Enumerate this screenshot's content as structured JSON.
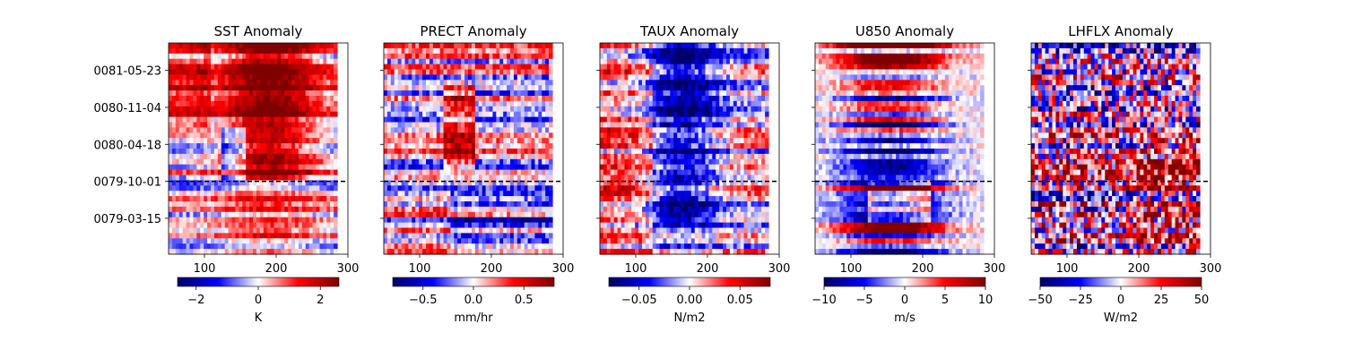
{
  "figure": {
    "ytick_labels": [
      "0081-05-23",
      "0080-11-04",
      "0080-04-18",
      "0079-10-01",
      "0079-03-15"
    ],
    "ytick_fracs": [
      0.13,
      0.305,
      0.48,
      0.655,
      0.83
    ],
    "event_line_frac": 0.655,
    "colormap": [
      "#000066",
      "#0000ff",
      "#ffffff",
      "#ff0000",
      "#800000"
    ]
  },
  "chart_data": [
    {
      "type": "heatmap",
      "title": "SST Anomaly",
      "xlim": [
        50,
        300
      ],
      "xticks": [
        100,
        200,
        300
      ],
      "data_x_extent": [
        50,
        285
      ],
      "colorbar": {
        "label": "K",
        "range": [
          -2.6,
          2.6
        ],
        "ticks": [
          -2,
          0,
          2
        ]
      },
      "pattern": "warm",
      "seed": 11
    },
    {
      "type": "heatmap",
      "title": "PRECT Anomaly",
      "xlim": [
        50,
        300
      ],
      "xticks": [
        100,
        200,
        300
      ],
      "data_x_extent": [
        50,
        285
      ],
      "colorbar": {
        "label": "mm/hr",
        "range": [
          -0.8,
          0.8
        ],
        "ticks": [
          -0.5,
          0.0,
          0.5
        ],
        "tick_labels": [
          "−0.5",
          "0.0",
          "0.5"
        ]
      },
      "pattern": "mixed",
      "seed": 23
    },
    {
      "type": "heatmap",
      "title": "TAUX Anomaly",
      "xlim": [
        50,
        300
      ],
      "xticks": [
        100,
        200,
        300
      ],
      "data_x_extent": [
        50,
        285
      ],
      "colorbar": {
        "label": "N/m2",
        "range": [
          -0.08,
          0.08
        ],
        "ticks": [
          -0.05,
          0.0,
          0.05
        ],
        "tick_labels": [
          "−0.05",
          "0.00",
          "0.05"
        ]
      },
      "pattern": "cold",
      "seed": 37
    },
    {
      "type": "heatmap",
      "title": "U850 Anomaly",
      "xlim": [
        50,
        300
      ],
      "xticks": [
        100,
        200,
        300
      ],
      "data_x_extent": [
        50,
        285
      ],
      "colorbar": {
        "label": "m/s",
        "range": [
          -10,
          10
        ],
        "ticks": [
          -10,
          -5,
          0,
          5,
          10
        ],
        "tick_labels": [
          "−10",
          "−5",
          "0",
          "5",
          "10"
        ]
      },
      "pattern": "bands",
      "seed": 41
    },
    {
      "type": "heatmap",
      "title": "LHFLX Anomaly",
      "xlim": [
        50,
        300
      ],
      "xticks": [
        100,
        200,
        300
      ],
      "data_x_extent": [
        50,
        285
      ],
      "colorbar": {
        "label": "W/m2",
        "range": [
          -50,
          50
        ],
        "ticks": [
          -50,
          -25,
          0,
          25,
          50
        ],
        "tick_labels": [
          "−50",
          "−25",
          "0",
          "25",
          "50"
        ]
      },
      "pattern": "noisy",
      "seed": 53
    }
  ]
}
